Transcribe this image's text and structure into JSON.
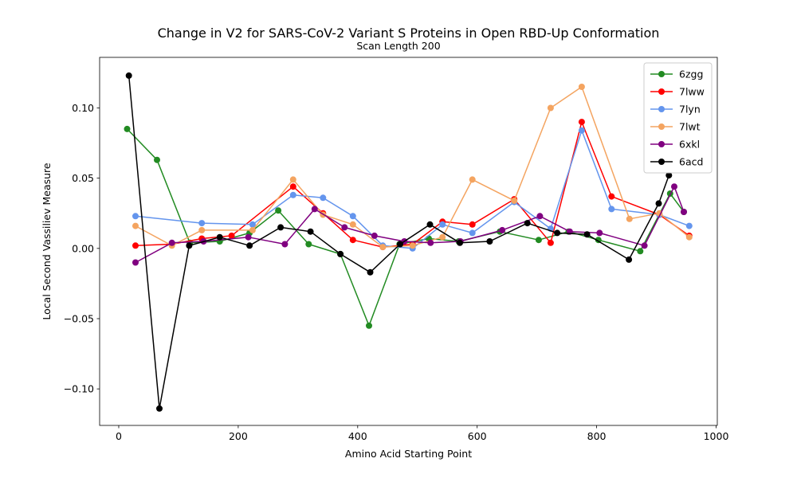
{
  "chart_data": {
    "type": "line",
    "title": "Change in V2 for SARS-CoV-2 Variant S Proteins in Open RBD-Up Conformation",
    "subtitle": "Scan Length 200",
    "xlabel": "Amino Acid Starting Point",
    "ylabel": "Local Second Vassiliev Measure",
    "xlim": [
      -32,
      1002
    ],
    "ylim": [
      -0.126,
      0.136
    ],
    "xticks": [
      0,
      200,
      400,
      600,
      800,
      1000
    ],
    "yticks": [
      -0.1,
      -0.05,
      0.0,
      0.05,
      0.1
    ],
    "ytick_labels": [
      "−0.10",
      "−0.05",
      "0.00",
      "0.05",
      "0.10"
    ],
    "grid": false,
    "legend_position": "top-right",
    "series": [
      {
        "name": "6zgg",
        "color": "#228b22",
        "x": [
          14,
          64,
          119,
          169,
          219,
          267,
          318,
          371,
          419,
          470,
          519,
          569,
          638,
          703,
          753,
          803,
          873,
          923,
          946
        ],
        "y": [
          0.085,
          0.063,
          0.004,
          0.005,
          0.011,
          0.027,
          0.003,
          -0.004,
          -0.055,
          0.003,
          0.007,
          0.005,
          0.012,
          0.006,
          0.012,
          0.006,
          -0.002,
          0.039,
          0.026
        ]
      },
      {
        "name": "7lww",
        "color": "#ff0000",
        "x": [
          28,
          89,
          139,
          189,
          292,
          342,
          392,
          442,
          492,
          542,
          592,
          662,
          723,
          775,
          825,
          905,
          955
        ],
        "y": [
          0.002,
          0.003,
          0.007,
          0.009,
          0.044,
          0.025,
          0.006,
          0.001,
          0.003,
          0.019,
          0.017,
          0.035,
          0.004,
          0.09,
          0.037,
          0.024,
          0.009
        ]
      },
      {
        "name": "7lyn",
        "color": "#6495ed",
        "x": [
          28,
          139,
          224,
          292,
          342,
          392,
          442,
          492,
          542,
          592,
          662,
          723,
          775,
          825,
          905,
          955
        ],
        "y": [
          0.023,
          0.018,
          0.017,
          0.038,
          0.036,
          0.023,
          0.002,
          0.0,
          0.017,
          0.011,
          0.033,
          0.014,
          0.084,
          0.028,
          0.024,
          0.016
        ]
      },
      {
        "name": "7lwt",
        "color": "#f4a460",
        "x": [
          28,
          89,
          139,
          224,
          292,
          342,
          392,
          442,
          492,
          542,
          592,
          662,
          723,
          775,
          855,
          905,
          955
        ],
        "y": [
          0.016,
          0.002,
          0.013,
          0.013,
          0.049,
          0.024,
          0.017,
          0.001,
          0.002,
          0.008,
          0.049,
          0.034,
          0.1,
          0.115,
          0.021,
          0.025,
          0.008
        ]
      },
      {
        "name": "6xkl",
        "color": "#800080",
        "x": [
          28,
          89,
          142,
          217,
          278,
          328,
          378,
          428,
          478,
          522,
          572,
          642,
          705,
          755,
          805,
          880,
          930,
          946
        ],
        "y": [
          -0.01,
          0.004,
          0.005,
          0.008,
          0.003,
          0.028,
          0.015,
          0.009,
          0.005,
          0.004,
          0.005,
          0.013,
          0.023,
          0.012,
          0.011,
          0.002,
          0.044,
          0.026
        ]
      },
      {
        "name": "6acd",
        "color": "#000000",
        "x": [
          17,
          68,
          118,
          169,
          219,
          271,
          321,
          371,
          421,
          471,
          521,
          571,
          621,
          684,
          734,
          784,
          854,
          904,
          921
        ],
        "y": [
          0.123,
          -0.114,
          0.002,
          0.008,
          0.002,
          0.015,
          0.012,
          -0.004,
          -0.017,
          0.003,
          0.017,
          0.004,
          0.005,
          0.018,
          0.011,
          0.01,
          -0.008,
          0.032,
          0.052
        ]
      }
    ]
  }
}
